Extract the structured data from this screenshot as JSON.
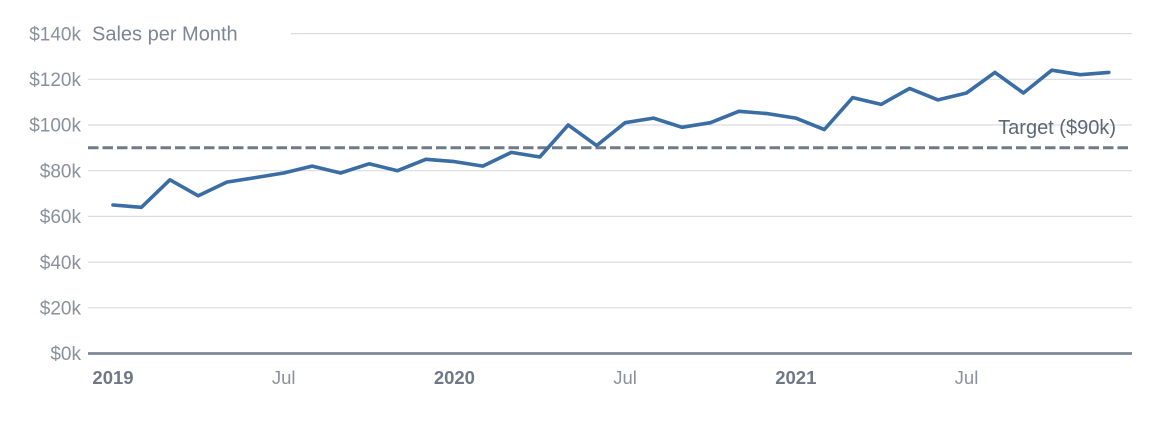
{
  "chart_data": {
    "type": "line",
    "title": "Sales per Month",
    "x_months": [
      "Jan 2019",
      "Feb 2019",
      "Mar 2019",
      "Apr 2019",
      "May 2019",
      "Jun 2019",
      "Jul 2019",
      "Aug 2019",
      "Sep 2019",
      "Oct 2019",
      "Nov 2019",
      "Dec 2019",
      "Jan 2020",
      "Feb 2020",
      "Mar 2020",
      "Apr 2020",
      "May 2020",
      "Jun 2020",
      "Jul 2020",
      "Aug 2020",
      "Sep 2020",
      "Oct 2020",
      "Nov 2020",
      "Dec 2020",
      "Jan 2021",
      "Feb 2021",
      "Mar 2021",
      "Apr 2021",
      "May 2021",
      "Jun 2021",
      "Jul 2021",
      "Aug 2021",
      "Sep 2021",
      "Oct 2021",
      "Nov 2021",
      "Dec 2021"
    ],
    "series": [
      {
        "name": "Sales per Month",
        "unit": "$k",
        "values": [
          65,
          64,
          76,
          69,
          75,
          77,
          79,
          82,
          79,
          83,
          80,
          85,
          84,
          82,
          88,
          86,
          100,
          91,
          101,
          103,
          99,
          101,
          106,
          105,
          103,
          98,
          112,
          109,
          116,
          111,
          114,
          123,
          114,
          124,
          122,
          123
        ]
      }
    ],
    "target": {
      "value": 90,
      "label": "Target ($90k)"
    },
    "y_axis": {
      "min": 0,
      "max": 140,
      "tick_step": 20,
      "tick_values": [
        0,
        20,
        40,
        60,
        80,
        100,
        120,
        140
      ],
      "tick_labels": [
        "$0k",
        "$20k",
        "$40k",
        "$60k",
        "$80k",
        "$100k",
        "$120k",
        "$140k"
      ]
    },
    "x_axis": {
      "ticks": [
        {
          "label": "2019",
          "month_index": 0,
          "bold": true
        },
        {
          "label": "Jul",
          "month_index": 6,
          "bold": false
        },
        {
          "label": "2020",
          "month_index": 12,
          "bold": true
        },
        {
          "label": "Jul",
          "month_index": 18,
          "bold": false
        },
        {
          "label": "2021",
          "month_index": 24,
          "bold": true
        },
        {
          "label": "Jul",
          "month_index": 30,
          "bold": false
        }
      ]
    },
    "legend": "none",
    "grid": "horizontal-only",
    "colors": {
      "series_line": "#3a6da3",
      "target_line": "#6e7a88",
      "gridline": "#d9dce1",
      "axis_line": "#7d8795",
      "y_tick_label": "#8a919d",
      "x_year_label": "#6f7885",
      "x_minor_label": "#8a919d",
      "title": "#7d8694",
      "target_label": "#5d6877",
      "background": "#ffffff"
    }
  }
}
